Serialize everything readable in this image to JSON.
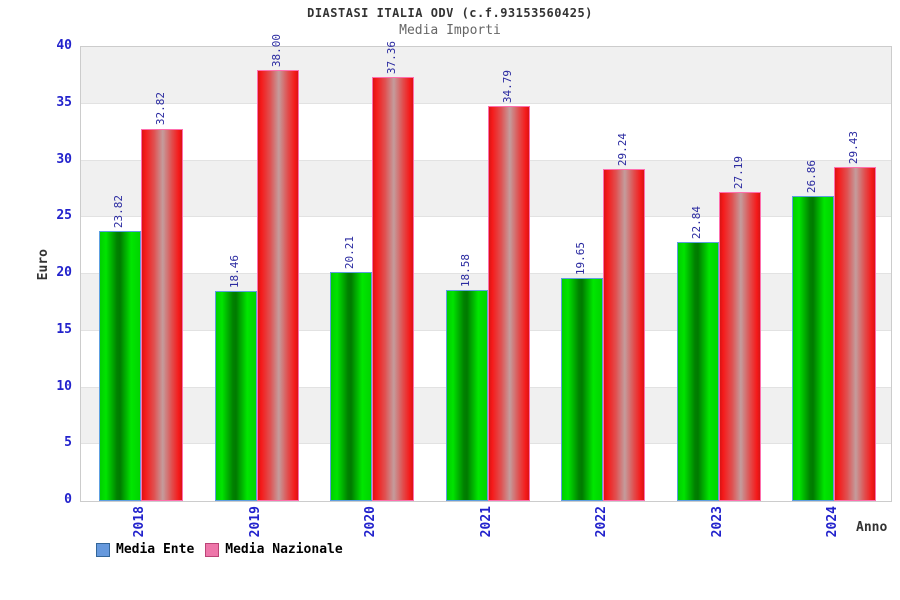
{
  "title": "DIASTASI ITALIA ODV (c.f.93153560425)",
  "subtitle": "Media Importi",
  "axes": {
    "y_label": "Euro",
    "x_label": "Anno",
    "y_ticks": [
      0,
      5,
      10,
      15,
      20,
      25,
      30,
      35,
      40
    ]
  },
  "legend": [
    {
      "label": "Media Ente",
      "fill": "#6699dd",
      "border": "#336699"
    },
    {
      "label": "Media Nazionale",
      "fill": "#ee77aa",
      "border": "#bb4477"
    }
  ],
  "colors": {
    "bar_ente_green": "#00cc00",
    "bar_ente_border": "#5e9fe0",
    "bar_nazionale_red": "#ee2222",
    "bar_nazionale_border": "#ff6fae",
    "tick_label_blue": "#2222cc",
    "value_label_navy": "#2a2aa0",
    "band_gray": "#f0f0f0",
    "plot_border": "#cccccc"
  },
  "chart_data": {
    "type": "bar",
    "categories": [
      "2018",
      "2019",
      "2020",
      "2021",
      "2022",
      "2023",
      "2024"
    ],
    "series": [
      {
        "name": "Media Ente",
        "values": [
          23.82,
          18.46,
          20.21,
          18.58,
          19.65,
          22.84,
          26.86
        ]
      },
      {
        "name": "Media Nazionale",
        "values": [
          32.82,
          38.0,
          37.36,
          34.79,
          29.24,
          27.19,
          29.43
        ]
      }
    ],
    "title": "DIASTASI ITALIA ODV (c.f.93153560425)",
    "subtitle": "Media Importi",
    "xlabel": "Anno",
    "ylabel": "Euro",
    "ylim": [
      0,
      40
    ],
    "ytick_step": 5,
    "grid": "horizontal-bands-alternating",
    "value_labels": "rotated-90-above-bars",
    "legend_position": "bottom-left"
  }
}
